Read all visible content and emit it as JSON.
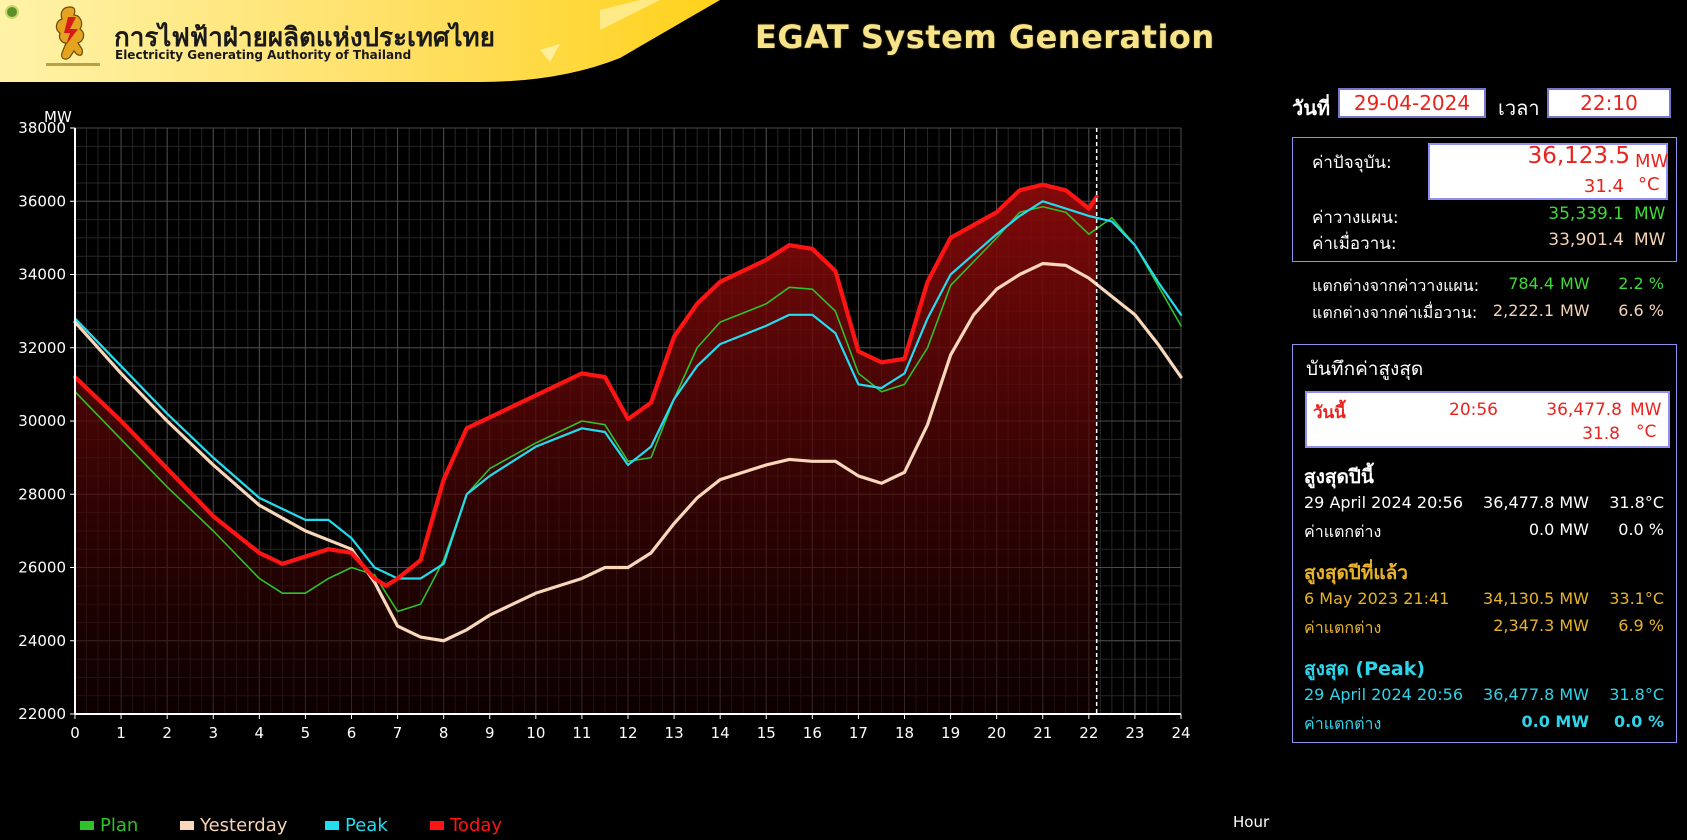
{
  "header": {
    "org_name_th": "การไฟฟ้าฝ่ายผลิตแห่งประเทศไทย",
    "org_name_en": "Electricity Generating Authority of Thailand",
    "app_title": "EGAT System Generation"
  },
  "datetime": {
    "date_label": "วันที่",
    "date_value": "29-04-2024",
    "time_label": "เวลา",
    "time_value": "22:10"
  },
  "current": {
    "current_label": "ค่าปัจจุบัน:",
    "current_mw": "36,123.5",
    "current_temp": "31.4",
    "plan_label": "ค่าวางแผน:",
    "plan_mw": "35,339.1",
    "yesterday_label": "ค่าเมื่อวาน:",
    "yesterday_mw": "33,901.4",
    "unit_mw": "MW",
    "unit_c": "°C"
  },
  "diff": {
    "plan_label": "แตกต่างจากค่าวางแผน:",
    "plan_mw": "784.4",
    "plan_pct": "2.2 %",
    "yesterday_label": "แตกต่างจากค่าเมื่อวาน:",
    "yesterday_mw": "2,222.1",
    "yesterday_pct": "6.6 %"
  },
  "records": {
    "title": "บันทึกค่าสูงสุด",
    "today_label": "วันนี้",
    "today_time": "20:56",
    "today_mw": "36,477.8",
    "today_temp": "31.8",
    "year_title": "สูงสุดปีนี้",
    "year_date": "29 April 2024 20:56",
    "year_mw": "36,477.8 MW",
    "year_temp": "31.8°C",
    "year_diff_label": "ค่าแตกต่าง",
    "year_diff_mw": "0.0 MW",
    "year_diff_pct": "0.0 %",
    "lastyear_title": "สูงสุดปีที่แล้ว",
    "lastyear_date": "6 May 2023 21:41",
    "lastyear_mw": "34,130.5 MW",
    "lastyear_temp": "33.1°C",
    "lastyear_diff_label": "ค่าแตกต่าง",
    "lastyear_diff_mw": "2,347.3 MW",
    "lastyear_diff_pct": "6.9 %",
    "peak_title": "สูงสุด (Peak)",
    "peak_date": "29 April 2024 20:56",
    "peak_mw": "36,477.8 MW",
    "peak_temp": "31.8°C",
    "peak_diff_label": "ค่าแตกต่าง",
    "peak_diff_mw": "0.0 MW",
    "peak_diff_pct": "0.0 %"
  },
  "colors": {
    "plan": "#2fc12a",
    "yesterday": "#f8d7bb",
    "peak": "#22dcef",
    "today": "#ff1414"
  },
  "chart_data": {
    "type": "line",
    "ylabel": "MW",
    "xlabel": "Hour",
    "xlim": [
      0,
      24
    ],
    "ylim": [
      22000,
      38000
    ],
    "x_ticks": [
      0,
      1,
      2,
      3,
      4,
      5,
      6,
      7,
      8,
      9,
      10,
      11,
      12,
      13,
      14,
      15,
      16,
      17,
      18,
      19,
      20,
      21,
      22,
      23,
      24
    ],
    "y_ticks": [
      22000,
      24000,
      26000,
      28000,
      30000,
      32000,
      34000,
      36000,
      38000
    ],
    "grid": true,
    "legend_position": "bottom-left",
    "current_hour_marker": 22.17,
    "series": [
      {
        "name": "Plan",
        "color_key": "plan",
        "x": [
          0,
          1,
          2,
          3,
          4,
          4.5,
          5,
          5.5,
          6,
          6.5,
          7,
          7.5,
          8,
          8.5,
          9,
          10,
          11,
          11.5,
          12,
          12.5,
          13,
          13.5,
          14,
          15,
          15.5,
          16,
          16.5,
          17,
          17.5,
          18,
          18.5,
          19,
          20,
          20.5,
          21,
          21.5,
          22,
          22.5,
          23,
          23.5,
          24
        ],
        "values": [
          30800,
          29500,
          28200,
          27000,
          25700,
          25300,
          25300,
          25700,
          26000,
          25800,
          24800,
          25000,
          26200,
          28000,
          28700,
          29400,
          30000,
          29900,
          28900,
          29000,
          30600,
          32000,
          32700,
          33200,
          33650,
          33600,
          33000,
          31300,
          30800,
          31000,
          32000,
          33700,
          35000,
          35700,
          35850,
          35700,
          35100,
          35550,
          34800,
          33700,
          32600
        ]
      },
      {
        "name": "Yesterday",
        "color_key": "yesterday",
        "x": [
          0,
          1,
          2,
          3,
          4,
          5,
          6,
          6.5,
          7,
          7.5,
          8,
          8.5,
          9,
          10,
          11,
          11.5,
          12,
          12.5,
          13,
          13.5,
          14,
          15,
          15.5,
          16,
          16.5,
          17,
          17.5,
          18,
          18.5,
          19,
          19.5,
          20,
          20.5,
          21,
          21.5,
          22,
          22.5,
          23,
          23.5,
          24
        ],
        "values": [
          32700,
          31300,
          30000,
          28800,
          27700,
          27000,
          26500,
          25600,
          24400,
          24100,
          24000,
          24300,
          24700,
          25300,
          25700,
          26000,
          26000,
          26400,
          27200,
          27900,
          28400,
          28800,
          28950,
          28900,
          28900,
          28500,
          28300,
          28600,
          29900,
          31800,
          32900,
          33600,
          34000,
          34300,
          34250,
          33900,
          33400,
          32900,
          32100,
          31200
        ]
      },
      {
        "name": "Peak",
        "color_key": "peak",
        "x": [
          0,
          1,
          2,
          3,
          4,
          5,
          5.5,
          6,
          6.5,
          7,
          7.5,
          8,
          8.5,
          9,
          10,
          11,
          11.5,
          12,
          12.5,
          13,
          13.5,
          14,
          15,
          15.5,
          16,
          16.5,
          17,
          17.5,
          18,
          18.5,
          19,
          20,
          20.5,
          21,
          21.5,
          22,
          22.5,
          23,
          23.5,
          24
        ],
        "values": [
          32800,
          31500,
          30200,
          29000,
          27900,
          27300,
          27300,
          26800,
          26000,
          25700,
          25700,
          26100,
          28000,
          28500,
          29300,
          29800,
          29700,
          28800,
          29300,
          30600,
          31500,
          32100,
          32600,
          32900,
          32900,
          32400,
          31000,
          30900,
          31300,
          32800,
          34000,
          35100,
          35600,
          36000,
          35800,
          35600,
          35450,
          34800,
          33800,
          32900
        ]
      },
      {
        "name": "Today",
        "color_key": "today",
        "x": [
          0,
          1,
          2,
          3,
          4,
          4.5,
          5,
          5.5,
          6,
          6.5,
          6.75,
          7,
          7.5,
          8,
          8.5,
          9,
          10,
          11,
          11.5,
          12,
          12.5,
          13,
          13.5,
          14,
          15,
          15.5,
          16,
          16.5,
          17,
          17.5,
          18,
          18.5,
          19,
          20,
          20.5,
          21,
          21.5,
          22,
          22.17
        ],
        "values": [
          31200,
          30000,
          28700,
          27400,
          26400,
          26100,
          26300,
          26500,
          26400,
          25700,
          25500,
          25700,
          26200,
          28400,
          29800,
          30100,
          30700,
          31300,
          31200,
          30050,
          30500,
          32300,
          33200,
          33800,
          34400,
          34800,
          34700,
          34100,
          31900,
          31600,
          31700,
          33800,
          35000,
          35700,
          36300,
          36450,
          36300,
          35800,
          36123
        ]
      }
    ]
  },
  "legend": [
    {
      "label": "Plan",
      "color_key": "plan"
    },
    {
      "label": "Yesterday",
      "color_key": "yesterday"
    },
    {
      "label": "Peak",
      "color_key": "peak"
    },
    {
      "label": "Today",
      "color_key": "today"
    }
  ]
}
